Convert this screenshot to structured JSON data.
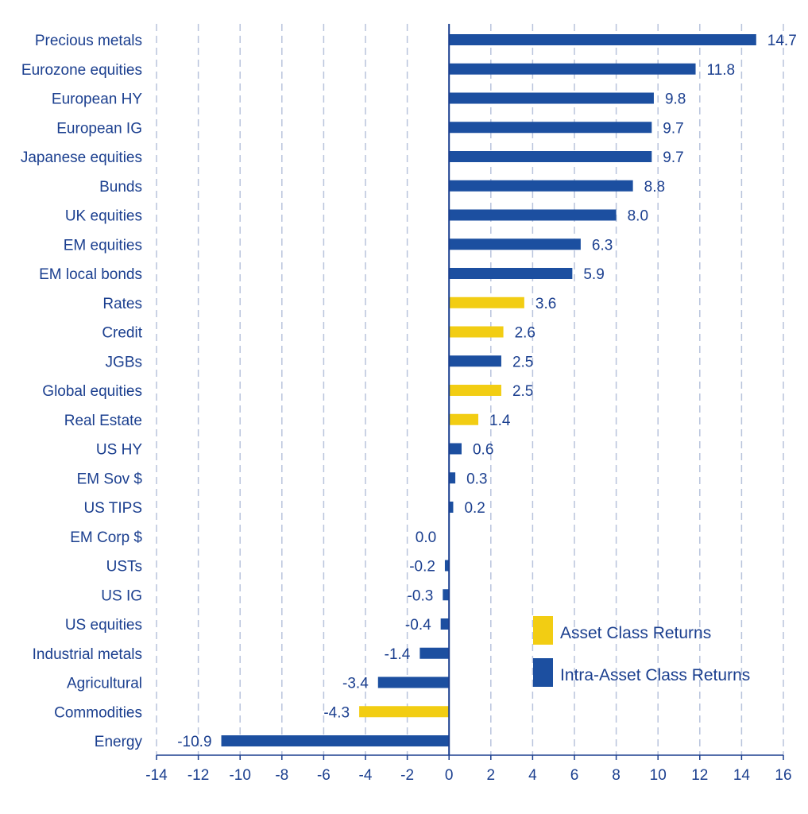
{
  "chart_data": {
    "type": "bar",
    "orientation": "horizontal",
    "categories": [
      "Precious metals",
      "Eurozone  equities",
      "European HY",
      "European IG",
      "Japanese equities",
      "Bunds",
      "UK equities",
      "EM equities",
      "EM local bonds",
      "Rates",
      "Credit",
      "JGBs",
      "Global equities",
      "Real Estate",
      "US HY",
      "EM Sov $",
      "US TIPS",
      "EM Corp $",
      "USTs",
      "US IG",
      "US equities",
      "Industrial metals",
      "Agricultural",
      "Commodities",
      "Energy"
    ],
    "values": [
      14.7,
      11.8,
      9.8,
      9.7,
      9.7,
      8.8,
      8.0,
      6.3,
      5.9,
      3.6,
      2.6,
      2.5,
      2.5,
      1.4,
      0.6,
      0.3,
      0.2,
      0.0,
      -0.2,
      -0.3,
      -0.4,
      -1.4,
      -3.4,
      -4.3,
      -10.9
    ],
    "value_labels": [
      "14.7",
      "11.8",
      "9.8",
      "9.7",
      "9.7",
      "8.8",
      "8.0",
      "6.3",
      "5.9",
      "3.6",
      "2.6",
      "2.5",
      "2.5",
      "1.4",
      "0.6",
      "0.3",
      "0.2",
      "0.0",
      "-0.2",
      "-0.3",
      "-0.4",
      "-1.4",
      "-3.4",
      "-4.3",
      "-10.9"
    ],
    "series_type": [
      "intra",
      "intra",
      "intra",
      "intra",
      "intra",
      "intra",
      "intra",
      "intra",
      "intra",
      "asset",
      "asset",
      "intra",
      "asset",
      "asset",
      "intra",
      "intra",
      "intra",
      "intra",
      "intra",
      "intra",
      "intra",
      "intra",
      "intra",
      "asset",
      "intra"
    ],
    "series": [
      {
        "key": "asset",
        "name": "Asset Class Returns",
        "color": "#f2cd13"
      },
      {
        "key": "intra",
        "name": "Intra-Asset Class Returns",
        "color": "#1c4fa0"
      }
    ],
    "xlim": [
      -14,
      16
    ],
    "xticks": [
      -14,
      -12,
      -10,
      -8,
      -6,
      -4,
      -2,
      0,
      2,
      4,
      6,
      8,
      10,
      12,
      14,
      16
    ],
    "grid": "vertical dashed",
    "legend_position": "bottom-right",
    "title": "",
    "xlabel": "",
    "ylabel": ""
  },
  "colors": {
    "text": "#1b3f8f",
    "grid": "#b8c3dc",
    "axis": "#1b3f8f"
  }
}
